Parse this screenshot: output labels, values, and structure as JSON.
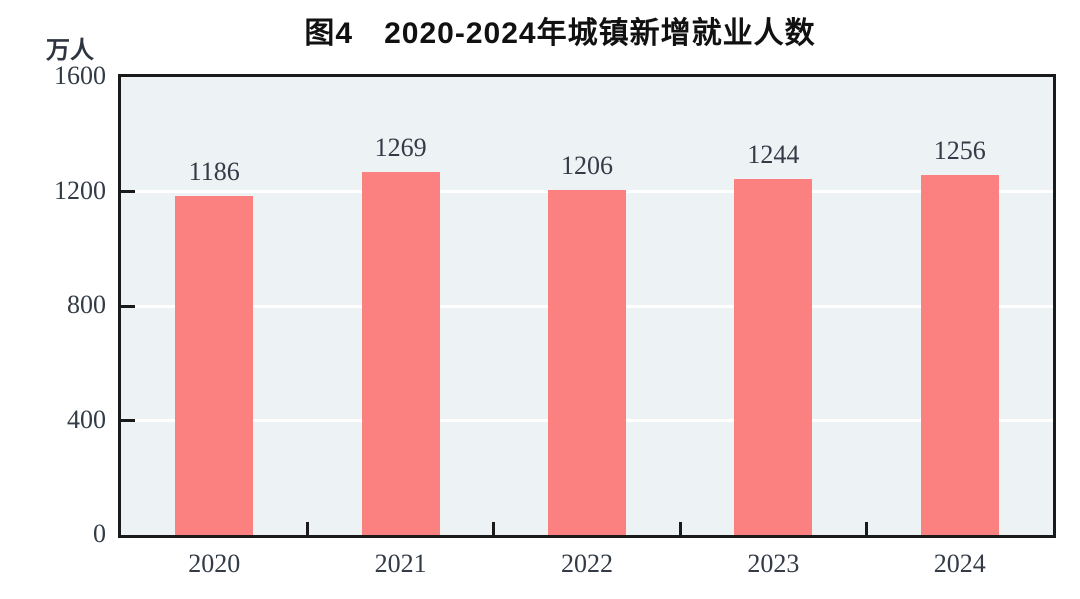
{
  "chart_data": {
    "type": "bar",
    "title": "图4　2020-2024年城镇新增就业人数",
    "unit_label": "万人",
    "categories": [
      "2020",
      "2021",
      "2022",
      "2023",
      "2024"
    ],
    "values": [
      1186,
      1269,
      1206,
      1244,
      1256
    ],
    "series": [
      {
        "name": "城镇新增就业人数",
        "values": [
          1186,
          1269,
          1206,
          1244,
          1256
        ]
      }
    ],
    "xlabel": "",
    "ylabel": "万人",
    "ylim": [
      0,
      1600
    ],
    "yticks": [
      0,
      400,
      800,
      1200,
      1600
    ],
    "grid": "horizontal white gridlines at 400, 800, 1200",
    "legend_position": "none",
    "data_labels_shown": true,
    "colors": {
      "bar": "#fb8080",
      "plot_background": "#edf2f5",
      "frame": "#1a1a1a",
      "gridline": "#ffffff",
      "tick_text": "#333b46",
      "title_text": "#111111",
      "page_background": "#ffffff"
    }
  }
}
